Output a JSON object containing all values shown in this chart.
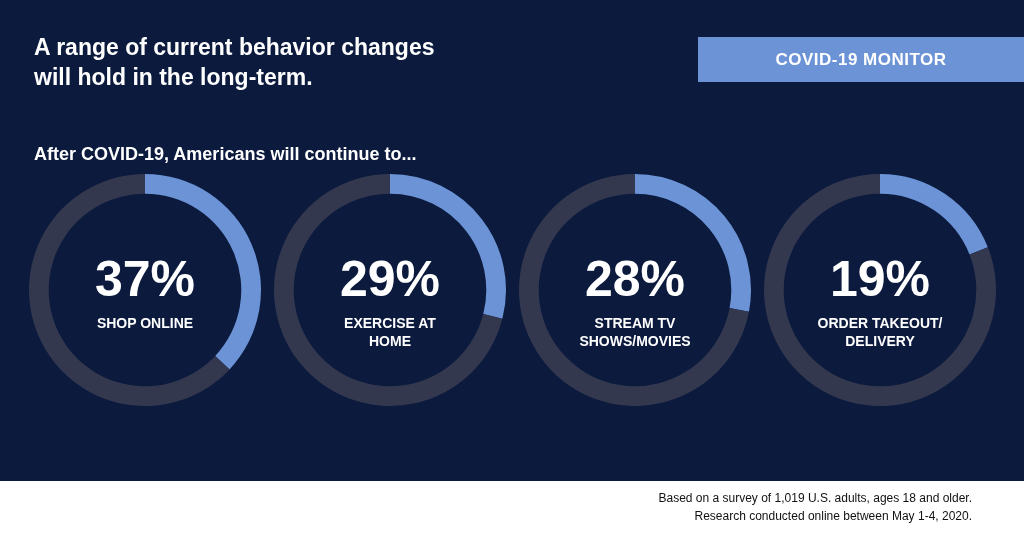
{
  "chart_data": [
    {
      "type": "donut",
      "title": "A range of current behavior changes will hold in the long-term.",
      "subtitle": "After COVID-19, Americans will continue to...",
      "annotations": [
        "COVID-19 MONITOR",
        "Based on a survey of 1,019 U.S. adults, ages 18 and older.",
        "Research conducted online between May 1-4, 2020."
      ],
      "categories": [
        "SHOP ONLINE",
        null
      ],
      "values": [
        37,
        63
      ],
      "value_labels": [
        "37%",
        null
      ],
      "colors": [
        "#6b93d6",
        "#33384f"
      ]
    },
    {
      "type": "donut",
      "categories": [
        "EXERCISE AT HOME",
        null
      ],
      "values": [
        29,
        71
      ],
      "value_labels": [
        "29%",
        null
      ],
      "colors": [
        "#6b93d6",
        "#33384f"
      ]
    },
    {
      "type": "donut",
      "categories": [
        "STREAM TV SHOWS/MOVIES",
        null
      ],
      "values": [
        28,
        72
      ],
      "value_labels": [
        "28%",
        null
      ],
      "colors": [
        "#6b93d6",
        "#33384f"
      ]
    },
    {
      "type": "donut",
      "categories": [
        "ORDER TAKEOUT/ DELIVERY",
        null
      ],
      "values": [
        19,
        81
      ],
      "value_labels": [
        "19%",
        null
      ],
      "colors": [
        "#6b93d6",
        "#33384f"
      ]
    }
  ]
}
